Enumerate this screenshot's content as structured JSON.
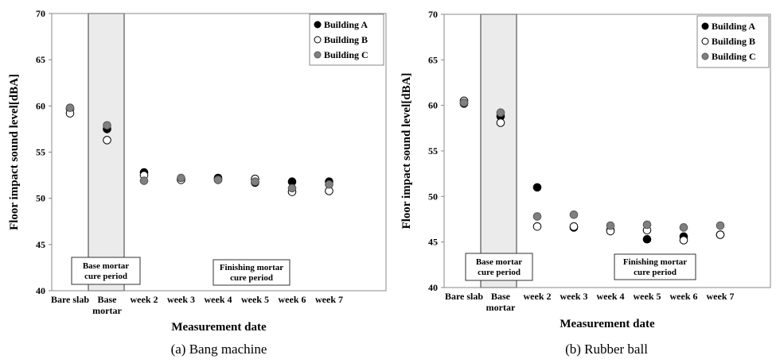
{
  "chart_data": [
    {
      "type": "scatter",
      "caption": "(a) Bang machine",
      "xlabel": "Measurement date",
      "ylabel": "Floor impact sound level[dBA]",
      "ylim": [
        40,
        70
      ],
      "yticks": [
        40,
        45,
        50,
        55,
        60,
        65,
        70
      ],
      "categories": [
        [
          "Bare slab"
        ],
        [
          "Base",
          "mortar"
        ],
        [
          "week 2"
        ],
        [
          "week 3"
        ],
        [
          "week 4"
        ],
        [
          "week 5"
        ],
        [
          "week 6"
        ],
        [
          "week 7"
        ]
      ],
      "grid": false,
      "legend_position": "top-right",
      "annotations": [
        {
          "lines": [
            "Base mortar",
            "cure period"
          ]
        },
        {
          "lines": [
            "Finishing mortar",
            "cure period"
          ]
        }
      ],
      "shaded_band": {
        "from_category": 0,
        "to_category": 1
      },
      "series": [
        {
          "name": "Building A",
          "color": "#000000",
          "stroke": "#000000",
          "values": [
            59.7,
            57.5,
            52.8,
            52.1,
            52.2,
            51.7,
            51.8,
            51.8
          ]
        },
        {
          "name": "Building B",
          "color": "#ffffff",
          "stroke": "#000000",
          "values": [
            59.2,
            56.3,
            52.5,
            52.0,
            52.0,
            52.1,
            50.7,
            50.8
          ]
        },
        {
          "name": "Building C",
          "color": "#808080",
          "stroke": "#555555",
          "values": [
            59.8,
            57.9,
            51.9,
            52.2,
            52.0,
            51.8,
            51.1,
            51.5
          ]
        }
      ]
    },
    {
      "type": "scatter",
      "caption": "(b) Rubber ball",
      "xlabel": "Measurement date",
      "ylabel": "Floor impact sound level[dBA]",
      "ylim": [
        40,
        70
      ],
      "yticks": [
        40,
        45,
        50,
        55,
        60,
        65,
        70
      ],
      "categories": [
        [
          "Bare slab"
        ],
        [
          "Base",
          "mortar"
        ],
        [
          "week 2"
        ],
        [
          "week 3"
        ],
        [
          "week 4"
        ],
        [
          "week 5"
        ],
        [
          "week 6"
        ],
        [
          "week 7"
        ]
      ],
      "grid": false,
      "legend_position": "top-right",
      "annotations": [
        {
          "lines": [
            "Base mortar",
            "cure period"
          ]
        },
        {
          "lines": [
            "Finishing mortar",
            "cure period"
          ]
        }
      ],
      "shaded_band": {
        "from_category": 0,
        "to_category": 1
      },
      "series": [
        {
          "name": "Building A",
          "color": "#000000",
          "stroke": "#000000",
          "values": [
            60.2,
            58.8,
            51.0,
            46.6,
            46.3,
            45.3,
            45.6,
            45.8
          ]
        },
        {
          "name": "Building B",
          "color": "#ffffff",
          "stroke": "#000000",
          "values": [
            60.5,
            58.1,
            46.7,
            46.7,
            46.2,
            46.3,
            45.2,
            45.8
          ]
        },
        {
          "name": "Building C",
          "color": "#808080",
          "stroke": "#555555",
          "values": [
            60.3,
            59.2,
            47.8,
            48.0,
            46.8,
            46.9,
            46.6,
            46.8
          ]
        }
      ]
    }
  ]
}
